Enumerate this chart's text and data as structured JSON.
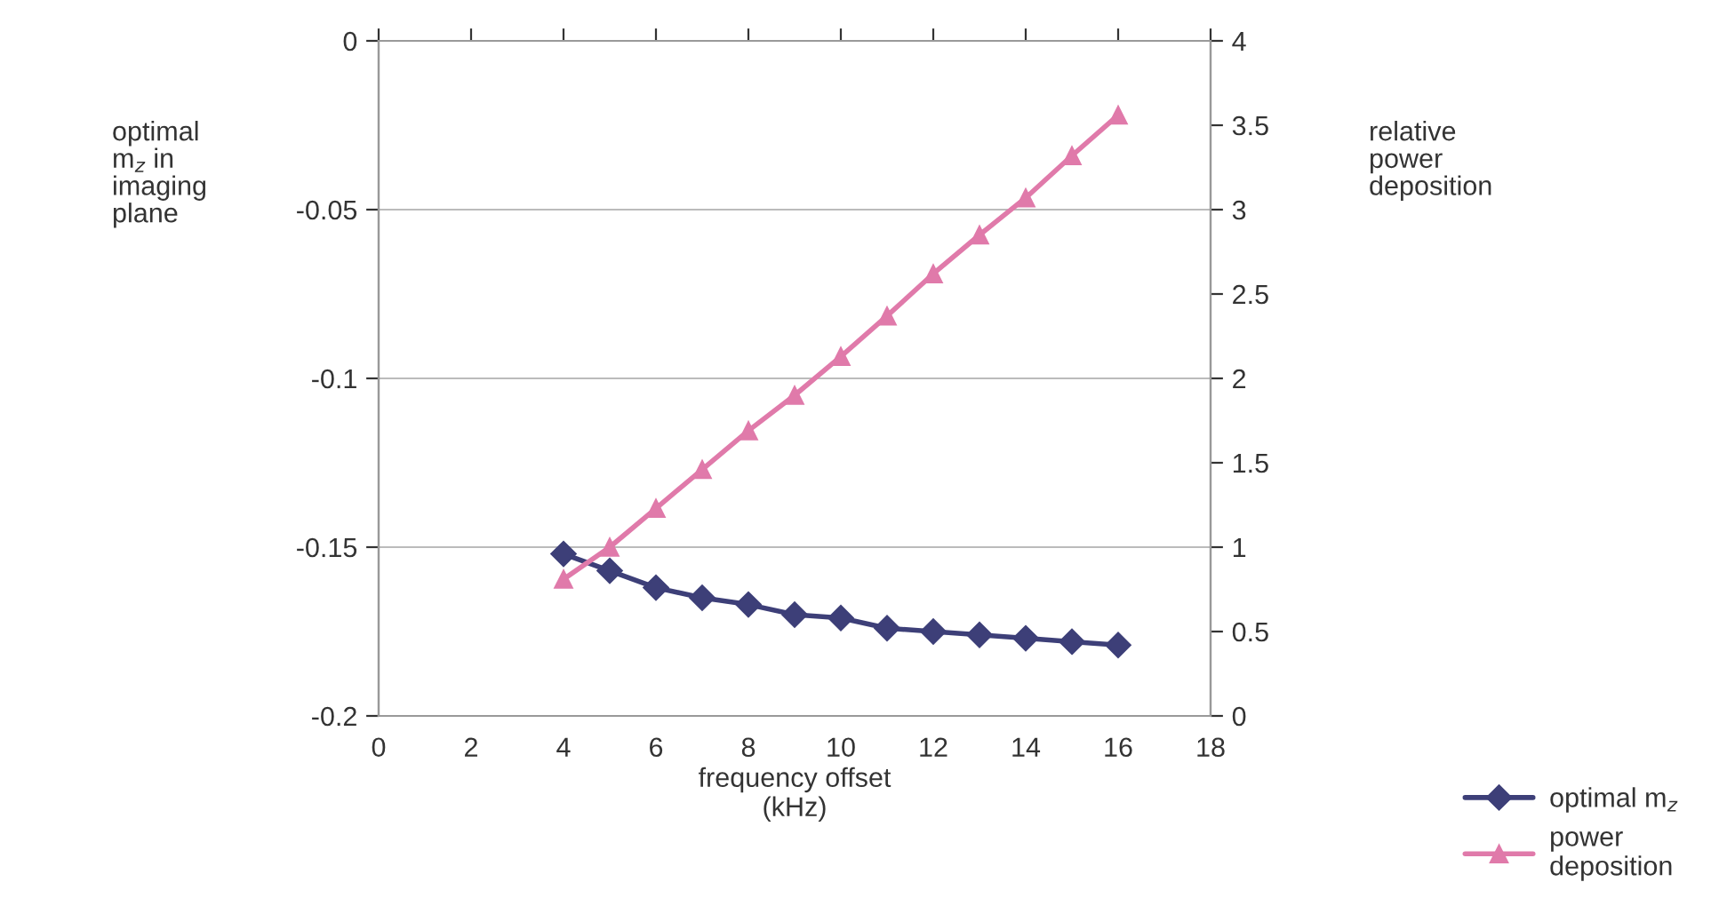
{
  "chart_data": {
    "type": "line",
    "x": [
      4,
      5,
      6,
      7,
      8,
      9,
      10,
      11,
      12,
      13,
      14,
      15,
      16
    ],
    "series": [
      {
        "name": "optimal m$_{z}$",
        "color": "#3d3f78",
        "marker": "diamond",
        "values": [
          -0.152,
          -0.157,
          -0.162,
          -0.165,
          -0.167,
          -0.17,
          -0.171,
          -0.174,
          -0.175,
          -0.176,
          -0.177,
          -0.178,
          -0.179
        ]
      },
      {
        "name": "power\ndeposition",
        "color": "#e07aaa",
        "marker": "triangle",
        "axis": "y2",
        "values": [
          0.81,
          1.0,
          1.23,
          1.46,
          1.69,
          1.9,
          2.13,
          2.37,
          2.62,
          2.85,
          3.07,
          3.32,
          3.56
        ]
      }
    ],
    "xlabel": "frequency offset\n(kHz)",
    "ylabel": "optimal\nm$_{z}$ in\nimaging\nplane",
    "y2label": "relative\npower\ndeposition",
    "xlim": [
      0,
      18
    ],
    "xticks": [
      0,
      2,
      4,
      6,
      8,
      10,
      12,
      14,
      16,
      18
    ],
    "ylim": [
      -0.2,
      0
    ],
    "yticks": [
      -0.2,
      -0.15,
      -0.1,
      -0.05,
      0
    ],
    "y2lim": [
      0,
      4
    ],
    "y2ticks": [
      0,
      0.5,
      1,
      1.5,
      2,
      2.5,
      3,
      3.5,
      4
    ],
    "grid": "y",
    "legend": "bottom right",
    "line_style": "solid"
  }
}
